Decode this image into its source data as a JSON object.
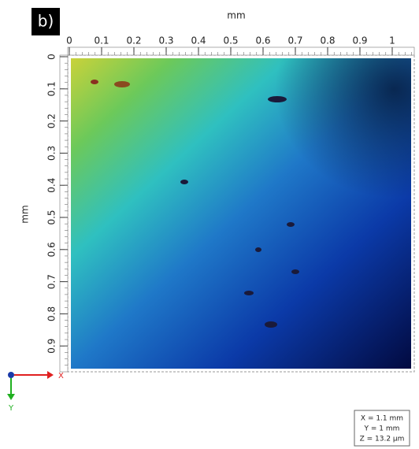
{
  "panel_label": "b)",
  "x_axis": {
    "label": "mm",
    "ticks": [
      0,
      0.1,
      0.2,
      0.3,
      0.4,
      0.5,
      0.6,
      0.7,
      0.8,
      0.9,
      1
    ]
  },
  "y_axis": {
    "label": "mm",
    "ticks": [
      0,
      0.1,
      0.2,
      0.3,
      0.4,
      0.5,
      0.6,
      0.7,
      0.8,
      0.9
    ]
  },
  "orientation": {
    "x": "X",
    "y": "Y"
  },
  "info": [
    "X = 1.1 mm",
    "Y = 1 mm",
    "Z = 13.2 µm"
  ]
}
